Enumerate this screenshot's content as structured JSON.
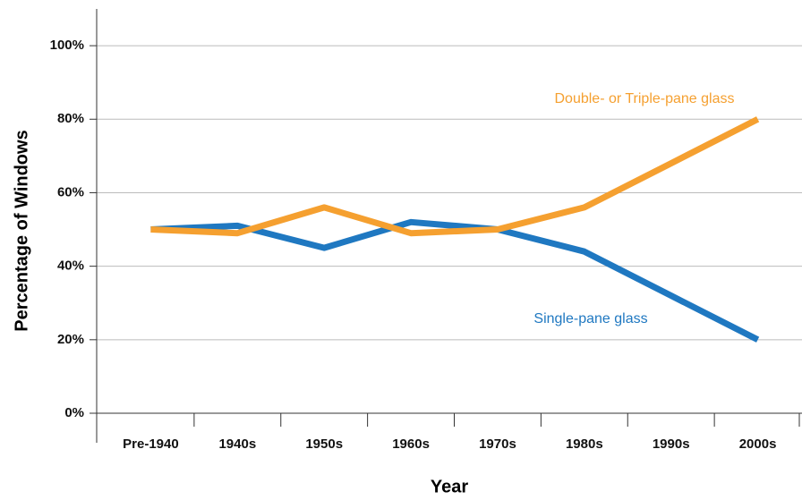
{
  "chart_data": {
    "type": "line",
    "categories": [
      "Pre-1940",
      "1940s",
      "1950s",
      "1960s",
      "1970s",
      "1980s",
      "1990s",
      "2000s"
    ],
    "series": [
      {
        "name": "Single-pane glass",
        "color": "#1f78c1",
        "values": [
          50,
          51,
          45,
          52,
          50,
          44,
          32,
          20
        ]
      },
      {
        "name": "Double- or Triple-pane glass",
        "color": "#f5a030",
        "values": [
          50,
          49,
          56,
          49,
          50,
          56,
          68,
          80
        ]
      }
    ],
    "x_label": "Year",
    "y_label": "Percentage of Windows",
    "ylim": [
      0,
      110
    ],
    "yticks": [
      {
        "value": 0,
        "label": "0%"
      },
      {
        "value": 20,
        "label": "20%"
      },
      {
        "value": 40,
        "label": "40%"
      },
      {
        "value": 60,
        "label": "60%"
      },
      {
        "value": 80,
        "label": "80%"
      },
      {
        "value": 100,
        "label": "100%"
      }
    ],
    "grid": true
  }
}
